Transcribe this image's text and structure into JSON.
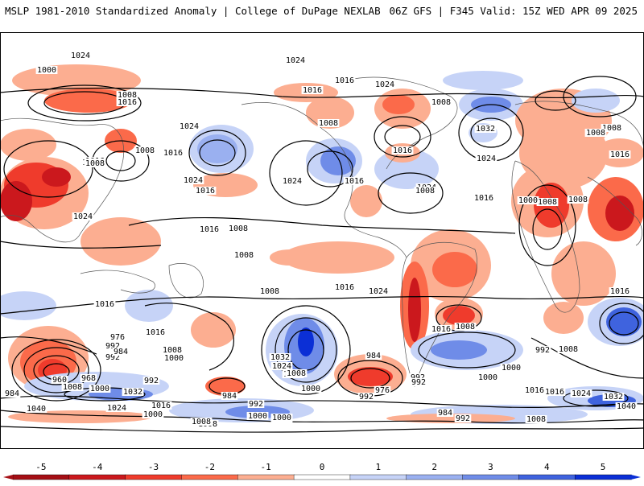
{
  "header": {
    "left_title": "MSLP 1981-2010 Standardized Anomaly | College of DuPage NEXLAB",
    "right_title": "06Z GFS | F345 Valid: 15Z WED APR 09 2025"
  },
  "colors": {
    "neg5": "#a50f15",
    "neg4": "#cb181d",
    "neg3": "#ef3b2c",
    "neg2": "#fb6a4a",
    "neg1": "#fcae91",
    "zero": "#ffffff",
    "pos1": "#c6d3f7",
    "pos2": "#9ab0f0",
    "pos3": "#6f8ce8",
    "pos4": "#3f63de",
    "pos5": "#0b2fd6",
    "contour": "#000000"
  },
  "colorbar": {
    "ticks": [
      "-5",
      "-4",
      "-3",
      "-2",
      "-1",
      "0",
      "1",
      "2",
      "3",
      "4",
      "5"
    ]
  },
  "contour_labels": [
    "1024",
    "1000",
    "1024",
    "1008",
    "1016",
    "1016",
    "1016",
    "1024",
    "1016",
    "1008",
    "1008",
    "1016",
    "1016",
    "1024",
    "1008",
    "1024",
    "1032",
    "1024",
    "1024",
    "1016",
    "1024",
    "1016",
    "1016",
    "1024",
    "1016",
    "1008",
    "1016",
    "1008",
    "1000",
    "1008",
    "1008",
    "1008",
    "1008",
    "1008",
    "1016",
    "1016",
    "1016",
    "1024",
    "1008",
    "1016",
    "1008",
    "1016",
    "1032",
    "1024",
    "1008",
    "984",
    "992",
    "992",
    "976",
    "984",
    "1008",
    "1000",
    "960",
    "968",
    "1008",
    "1000",
    "992",
    "1032",
    "984",
    "1040",
    "1024",
    "984",
    "1016",
    "992",
    "1000",
    "1008",
    "1000",
    "1008",
    "992",
    "1000",
    "1008",
    "976",
    "992",
    "984",
    "1016",
    "1000",
    "1008",
    "992",
    "1016",
    "1024",
    "1032",
    "1040",
    "1000",
    "992",
    "1008",
    "1008",
    "1016",
    "1000",
    "992",
    "1008"
  ]
}
